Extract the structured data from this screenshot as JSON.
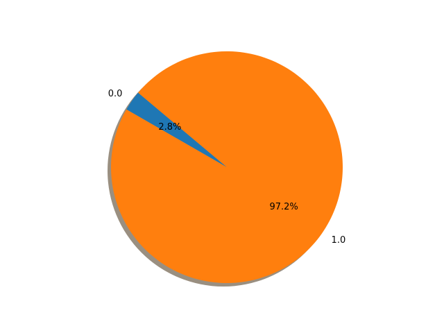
{
  "chart_data": {
    "type": "pie",
    "title": "",
    "slices": [
      {
        "label": "0.0",
        "value": 2.8,
        "pct_label": "2.8%",
        "color": "#1f77b4"
      },
      {
        "label": "1.0",
        "value": 97.2,
        "pct_label": "97.2%",
        "color": "#ff7f0e"
      }
    ],
    "start_angle_deg": 140,
    "shadow": true,
    "shadow_color": "#9a8f80",
    "legend": "none"
  }
}
